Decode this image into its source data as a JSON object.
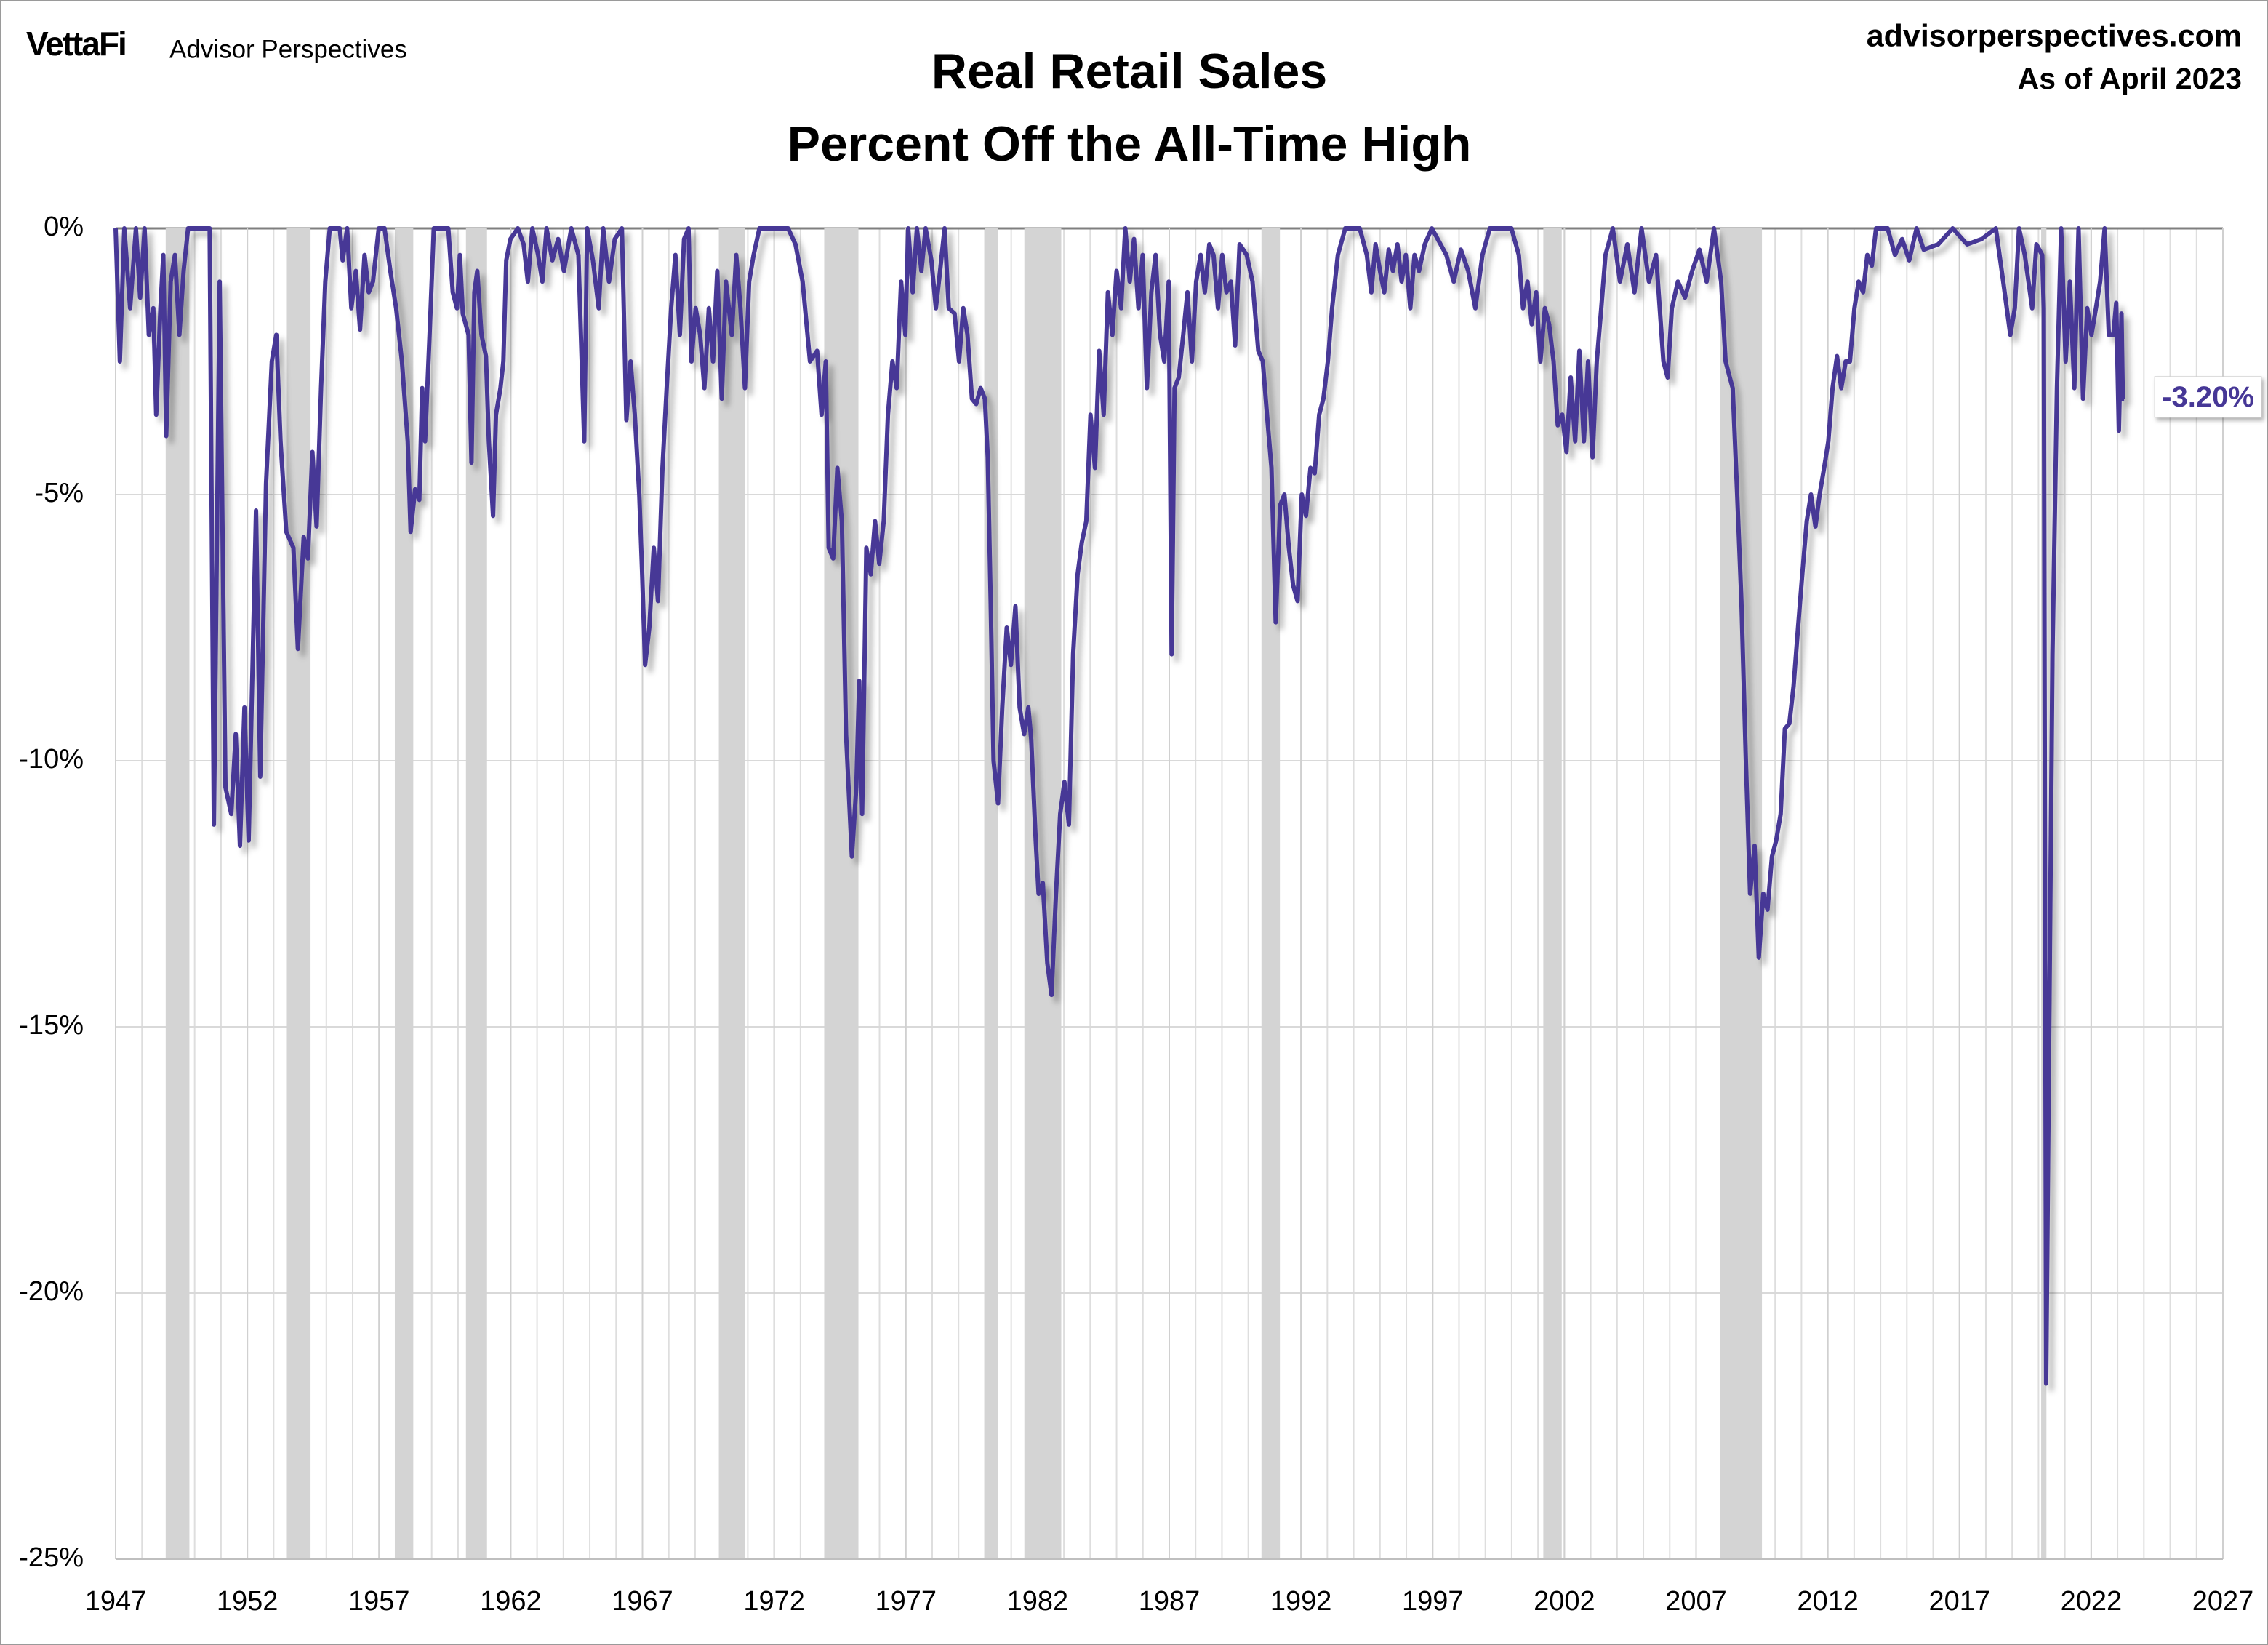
{
  "logo": "VettaFi",
  "brand": "Advisor Perspectives",
  "source": "advisorperspectives.com",
  "date_note": "As of April 2023",
  "chart_data": {
    "type": "line",
    "title": "Real Retail Sales",
    "subtitle": "Percent Off the All-Time High",
    "color": "#463796",
    "xlim": [
      1947,
      2027
    ],
    "xticks": [
      1947,
      1952,
      1957,
      1962,
      1967,
      1972,
      1977,
      1982,
      1987,
      1992,
      1997,
      2002,
      2007,
      2012,
      2017,
      2022,
      2027
    ],
    "x_minor_ticks": [
      1947,
      1948,
      1949,
      1950,
      1951,
      1952,
      1953,
      1954,
      1955,
      1956,
      1957,
      1958,
      1959,
      1960,
      1961,
      1962,
      1963,
      1964,
      1965,
      1966,
      1967,
      1968,
      1969,
      1970,
      1971,
      1972,
      1973,
      1974,
      1975,
      1976,
      1977,
      1978,
      1979,
      1980,
      1981,
      1982,
      1983,
      1984,
      1985,
      1986,
      1987,
      1988,
      1989,
      1990,
      1991,
      1992,
      1993,
      1994,
      1995,
      1996,
      1997,
      1998,
      1999,
      2000,
      2001,
      2002,
      2003,
      2004,
      2005,
      2006,
      2007,
      2008,
      2009,
      2010,
      2011,
      2012,
      2013,
      2014,
      2015,
      2016,
      2017,
      2018,
      2019,
      2020,
      2021,
      2022,
      2023,
      2024,
      2025,
      2026,
      2027
    ],
    "ylim": [
      -25,
      0
    ],
    "yticks": [
      {
        "value": 0,
        "label": "0%"
      },
      {
        "value": -5,
        "label": "-5%"
      },
      {
        "value": -10,
        "label": "-10%"
      },
      {
        "value": -15,
        "label": "-15%"
      },
      {
        "value": -20,
        "label": "-20%"
      },
      {
        "value": -25,
        "label": "-25%"
      }
    ],
    "grid": true,
    "band_color": "#d4d4d4",
    "recessions": [
      [
        1948.9,
        1949.8
      ],
      [
        1953.5,
        1954.4
      ],
      [
        1957.6,
        1958.3
      ],
      [
        1960.3,
        1961.1
      ],
      [
        1969.9,
        1970.9
      ],
      [
        1973.9,
        1975.2
      ],
      [
        1980.0,
        1980.5
      ],
      [
        1981.5,
        1982.9
      ],
      [
        1990.5,
        1991.2
      ],
      [
        2001.2,
        2001.9
      ],
      [
        2007.9,
        2009.5
      ],
      [
        2020.1,
        2020.3
      ]
    ],
    "x": [
      1947.0,
      1947.16,
      1947.33,
      1947.55,
      1947.77,
      1947.93,
      1948.1,
      1948.26,
      1948.43,
      1948.54,
      1948.7,
      1948.81,
      1948.92,
      1949.09,
      1949.25,
      1949.42,
      1949.58,
      1949.75,
      1950.02,
      1950.57,
      1950.73,
      1950.95,
      1951.17,
      1951.39,
      1951.56,
      1951.72,
      1951.89,
      1952.05,
      1952.33,
      1952.49,
      1952.71,
      1952.93,
      1953.1,
      1953.26,
      1953.48,
      1953.75,
      1953.92,
      1954.14,
      1954.3,
      1954.47,
      1954.63,
      1954.8,
      1954.96,
      1955.13,
      1955.51,
      1955.62,
      1955.79,
      1955.95,
      1956.12,
      1956.28,
      1956.45,
      1956.61,
      1956.77,
      1956.99,
      1957.21,
      1957.43,
      1957.65,
      1957.87,
      1958.09,
      1958.2,
      1958.37,
      1958.53,
      1958.64,
      1958.75,
      1958.92,
      1959.08,
      1959.63,
      1959.8,
      1959.96,
      1960.07,
      1960.18,
      1960.4,
      1960.51,
      1960.62,
      1960.73,
      1960.89,
      1961.06,
      1961.17,
      1961.33,
      1961.44,
      1961.61,
      1961.72,
      1961.83,
      1961.99,
      1962.27,
      1962.49,
      1962.65,
      1962.82,
      1963.04,
      1963.2,
      1963.36,
      1963.58,
      1963.8,
      1964.02,
      1964.3,
      1964.57,
      1964.79,
      1964.9,
      1965.12,
      1965.34,
      1965.51,
      1965.73,
      1965.95,
      1966.22,
      1966.39,
      1966.55,
      1966.71,
      1966.88,
      1966.99,
      1967.1,
      1967.26,
      1967.43,
      1967.59,
      1967.76,
      1967.92,
      1968.09,
      1968.25,
      1968.42,
      1968.58,
      1968.75,
      1968.86,
      1969.02,
      1969.19,
      1969.35,
      1969.52,
      1969.68,
      1969.84,
      1970.01,
      1970.17,
      1970.39,
      1970.56,
      1970.72,
      1970.89,
      1971.05,
      1971.22,
      1971.44,
      1971.99,
      1972.53,
      1972.81,
      1973.08,
      1973.36,
      1973.63,
      1973.8,
      1973.96,
      1974.07,
      1974.24,
      1974.4,
      1974.57,
      1974.73,
      1974.95,
      1975.12,
      1975.23,
      1975.34,
      1975.5,
      1975.67,
      1975.83,
      1975.99,
      1976.16,
      1976.32,
      1976.49,
      1976.65,
      1976.82,
      1976.98,
      1977.09,
      1977.26,
      1977.42,
      1977.59,
      1977.75,
      1977.97,
      1978.14,
      1978.3,
      1978.47,
      1978.63,
      1978.85,
      1979.02,
      1979.18,
      1979.34,
      1979.51,
      1979.67,
      1979.84,
      1980.0,
      1980.11,
      1980.22,
      1980.33,
      1980.5,
      1980.66,
      1980.83,
      1980.99,
      1981.16,
      1981.32,
      1981.49,
      1981.65,
      1981.76,
      1981.93,
      1982.04,
      1982.2,
      1982.37,
      1982.53,
      1982.7,
      1982.86,
      1983.02,
      1983.19,
      1983.35,
      1983.52,
      1983.68,
      1983.85,
      1984.01,
      1984.18,
      1984.34,
      1984.51,
      1984.67,
      1984.84,
      1985.0,
      1985.17,
      1985.33,
      1985.5,
      1985.66,
      1985.83,
      1985.99,
      1986.15,
      1986.32,
      1986.48,
      1986.65,
      1986.81,
      1986.98,
      1987.09,
      1987.2,
      1987.36,
      1987.53,
      1987.69,
      1987.86,
      1988.02,
      1988.19,
      1988.35,
      1988.52,
      1988.68,
      1988.85,
      1989.01,
      1989.17,
      1989.34,
      1989.5,
      1989.67,
      1989.94,
      1990.16,
      1990.38,
      1990.55,
      1990.71,
      1990.88,
      1991.04,
      1991.21,
      1991.37,
      1991.54,
      1991.7,
      1991.87,
      1992.03,
      1992.19,
      1992.36,
      1992.52,
      1992.69,
      1992.85,
      1993.02,
      1993.18,
      1993.4,
      1993.68,
      1994.23,
      1994.5,
      1994.67,
      1994.83,
      1995.0,
      1995.16,
      1995.33,
      1995.49,
      1995.66,
      1995.82,
      1995.98,
      1996.15,
      1996.31,
      1996.48,
      1996.7,
      1996.97,
      1997.52,
      1997.8,
      1998.07,
      1998.35,
      1998.62,
      1998.89,
      1999.17,
      1999.99,
      2000.27,
      2000.43,
      2000.6,
      2000.76,
      2000.93,
      2001.09,
      2001.26,
      2001.42,
      2001.59,
      2001.75,
      2001.92,
      2002.08,
      2002.24,
      2002.41,
      2002.57,
      2002.74,
      2002.9,
      2003.07,
      2003.23,
      2003.4,
      2003.56,
      2003.84,
      2004.11,
      2004.39,
      2004.66,
      2004.93,
      2005.21,
      2005.48,
      2005.76,
      2005.92,
      2006.08,
      2006.31,
      2006.58,
      2006.85,
      2007.13,
      2007.4,
      2007.68,
      2007.95,
      2008.12,
      2008.28,
      2008.39,
      2008.56,
      2008.72,
      2008.89,
      2009.05,
      2009.22,
      2009.38,
      2009.55,
      2009.71,
      2009.88,
      2010.04,
      2010.21,
      2010.37,
      2010.54,
      2010.7,
      2010.87,
      2011.03,
      2011.2,
      2011.36,
      2011.53,
      2011.69,
      2011.86,
      2012.02,
      2012.18,
      2012.35,
      2012.51,
      2012.68,
      2012.84,
      2013.01,
      2013.17,
      2013.34,
      2013.5,
      2013.67,
      2013.83,
      2014.27,
      2014.55,
      2014.82,
      2015.09,
      2015.37,
      2015.64,
      2016.19,
      2016.74,
      2017.29,
      2017.84,
      2018.38,
      2018.66,
      2018.93,
      2019.1,
      2019.26,
      2019.48,
      2019.76,
      2019.92,
      2020.14,
      2020.2,
      2020.29,
      2020.53,
      2020.7,
      2020.86,
      2021.03,
      2021.19,
      2021.36,
      2021.52,
      2021.69,
      2021.85,
      2022.01,
      2022.18,
      2022.34,
      2022.51,
      2022.67,
      2022.84,
      2022.95,
      2023.05,
      2023.15,
      2023.2,
      2023.25
    ],
    "values": [
      0,
      -2.5,
      0,
      -1.5,
      0,
      -1.3,
      0,
      -2,
      -1.5,
      -3.5,
      -1.5,
      -0.5,
      -3.9,
      -1,
      -0.5,
      -2,
      -0.8,
      0,
      0,
      0,
      -11.2,
      -1,
      -10.5,
      -11,
      -9.5,
      -11.6,
      -9,
      -11.5,
      -5.3,
      -10.3,
      -4.8,
      -2.5,
      -2,
      -4,
      -5.7,
      -6,
      -7.9,
      -5.8,
      -6.2,
      -4.2,
      -5.6,
      -3,
      -1,
      0,
      0,
      -0.6,
      0,
      -1.5,
      -0.8,
      -1.9,
      -0.5,
      -1.2,
      -1,
      0,
      0,
      -0.8,
      -1.5,
      -2.5,
      -4,
      -5.7,
      -4.9,
      -5.1,
      -3,
      -4,
      -2,
      0,
      0,
      -1.2,
      -1.5,
      -0.5,
      -1.6,
      -2,
      -4.4,
      -1.2,
      -0.8,
      -2,
      -2.4,
      -4,
      -5.4,
      -3.5,
      -3,
      -2.5,
      -0.6,
      -0.2,
      0,
      -0.3,
      -1,
      0,
      -0.5,
      -1,
      0,
      -0.6,
      -0.2,
      -0.8,
      0,
      -0.5,
      -4,
      0,
      -0.6,
      -1.5,
      0,
      -1,
      -0.2,
      0,
      -3.6,
      -2.5,
      -3.5,
      -5,
      -6.5,
      -8.2,
      -7.5,
      -6,
      -7,
      -4.5,
      -3,
      -1.5,
      -0.5,
      -2,
      -0.2,
      0,
      -2.5,
      -1.5,
      -2,
      -3,
      -1.5,
      -2.5,
      -0.8,
      -3.2,
      -1,
      -2,
      -0.5,
      -1.5,
      -3,
      -1,
      -0.5,
      0,
      0,
      0,
      -0.3,
      -1,
      -2.5,
      -2.3,
      -3.5,
      -2.5,
      -6,
      -6.2,
      -4.5,
      -5.5,
      -9.5,
      -11.8,
      -10.5,
      -8.5,
      -11,
      -6,
      -6.5,
      -5.5,
      -6.3,
      -5.5,
      -3.5,
      -2.5,
      -3,
      -1,
      -2,
      0,
      -1.2,
      0,
      -0.8,
      0,
      -0.6,
      -1.5,
      -0.8,
      0,
      -1.5,
      -1.6,
      -2.5,
      -1.5,
      -2,
      -3.2,
      -3.3,
      -3,
      -3.2,
      -4.3,
      -7,
      -10,
      -10.8,
      -9,
      -7.5,
      -8.2,
      -7.1,
      -9,
      -9.5,
      -9,
      -9.6,
      -11.5,
      -12.5,
      -12.3,
      -13.8,
      -14.4,
      -12.5,
      -11,
      -10.4,
      -11.2,
      -8,
      -6.5,
      -5.9,
      -5.5,
      -3.5,
      -4.5,
      -2.3,
      -3.5,
      -1.2,
      -2,
      -0.8,
      -1.5,
      0,
      -1,
      -0.2,
      -1.5,
      -0.5,
      -3,
      -1.2,
      -0.5,
      -2,
      -2.5,
      -1,
      -8,
      -3,
      -2.8,
      -2,
      -1.2,
      -2.5,
      -1,
      -0.5,
      -1.2,
      -0.3,
      -0.5,
      -1.5,
      -0.5,
      -1.2,
      -1,
      -2.2,
      -0.3,
      -0.5,
      -1,
      -2.3,
      -2.5,
      -3.5,
      -4.5,
      -7.4,
      -5.2,
      -5,
      -6,
      -6.7,
      -7,
      -5,
      -5.4,
      -4.5,
      -4.6,
      -3.5,
      -3.2,
      -2.5,
      -1.5,
      -0.5,
      0,
      0,
      -0.5,
      -1.2,
      -0.3,
      -0.8,
      -1.2,
      -0.4,
      -0.8,
      -0.3,
      -1,
      -0.5,
      -1.5,
      -0.5,
      -0.8,
      -0.3,
      0,
      -0.5,
      -1,
      -0.4,
      -0.8,
      -1.5,
      -0.5,
      0,
      0,
      -0.5,
      -1.5,
      -1,
      -1.8,
      -1.2,
      -2.5,
      -1.5,
      -1.8,
      -2.5,
      -3.7,
      -3.5,
      -4.2,
      -2.8,
      -4,
      -2.3,
      -4,
      -2.5,
      -4.3,
      -2.5,
      -1.5,
      -0.5,
      0,
      -1,
      -0.3,
      -1.2,
      0,
      -1,
      -0.5,
      -2.5,
      -2.8,
      -1.5,
      -1,
      -1.3,
      -0.8,
      -0.4,
      -1,
      0,
      -1,
      -2.5,
      -2.8,
      -3,
      -5,
      -7,
      -10,
      -12.5,
      -11.6,
      -13.7,
      -12.5,
      -12.8,
      -11.8,
      -11.5,
      -11,
      -9.4,
      -9.3,
      -8.6,
      -7.5,
      -6.5,
      -5.5,
      -5,
      -5.6,
      -5,
      -4.5,
      -4,
      -3,
      -2.4,
      -3,
      -2.5,
      -2.5,
      -1.5,
      -1,
      -1.2,
      -0.5,
      -0.7,
      0,
      0,
      -0.5,
      -0.2,
      -0.6,
      0,
      -0.4,
      -0.3,
      0,
      -0.3,
      -0.2,
      0,
      -1,
      -2,
      -1.5,
      0,
      -0.5,
      -1.5,
      -0.3,
      -0.5,
      -1.5,
      -21.7,
      -8,
      -3,
      0,
      -2.5,
      -1,
      -3,
      0,
      -3.2,
      -1.5,
      -2,
      -1.5,
      -1,
      0,
      -2,
      -2,
      -1.4,
      -3.8,
      -1.6,
      -3.2,
      -3.2
    ],
    "annotations": [
      {
        "text": "-3.20%",
        "x": 2023.25,
        "y": -3.2
      }
    ]
  }
}
